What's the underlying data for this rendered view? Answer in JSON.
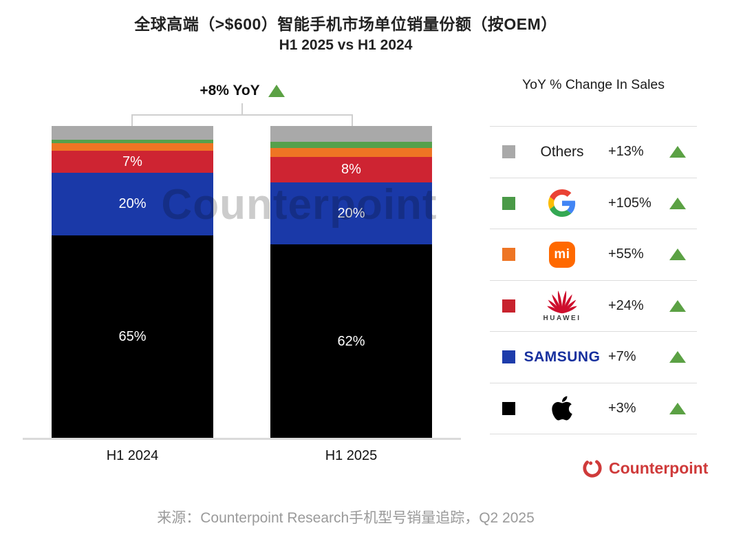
{
  "header": {
    "title": "全球高端（>$600）智能手机市场单位销量份额（按OEM）",
    "subtitle": "H1 2025 vs H1 2024"
  },
  "watermark": "Counterpoint",
  "chart_data": {
    "type": "bar",
    "stacked": true,
    "title": "全球高端（>$600）智能手机市场单位销量份额（按OEM）",
    "subtitle": "H1 2025 vs H1 2024",
    "annotation": "+8% YoY",
    "categories": [
      "H1 2024",
      "H1 2025"
    ],
    "unit": "%",
    "ylim": [
      0,
      100
    ],
    "series_order_note": "top-to-bottom stacking",
    "series": [
      {
        "name": "Others",
        "color": "#a9a9a9",
        "values": [
          4.5,
          5
        ],
        "labels": [
          "",
          ""
        ]
      },
      {
        "name": "Google",
        "color": "#55a04c",
        "values": [
          1,
          2
        ],
        "labels": [
          "",
          ""
        ]
      },
      {
        "name": "Xiaomi",
        "color": "#ee7524",
        "values": [
          2.5,
          3
        ],
        "labels": [
          "",
          ""
        ]
      },
      {
        "name": "Huawei",
        "color": "#ce2432",
        "values": [
          7,
          8
        ],
        "labels": [
          "7%",
          "8%"
        ]
      },
      {
        "name": "Samsung",
        "color": "#1a39a8",
        "values": [
          20,
          20
        ],
        "labels": [
          "20%",
          "20%"
        ]
      },
      {
        "name": "Apple",
        "color": "#000000",
        "values": [
          65,
          62
        ],
        "labels": [
          "65%",
          "62%"
        ]
      }
    ]
  },
  "legend": {
    "title": "YoY % Change In Sales",
    "rows": [
      {
        "name": "Others",
        "swatch": "#a9a9a9",
        "change": "+13%"
      },
      {
        "name": "Google",
        "swatch": "#4a9a47",
        "change": "+105%"
      },
      {
        "name": "Xiaomi",
        "swatch": "#ee7524",
        "change": "+55%",
        "logo_text": "mi"
      },
      {
        "name": "Huawei",
        "swatch": "#c8232e",
        "change": "+24%",
        "logo_caption": "HUAWEI"
      },
      {
        "name": "Samsung",
        "swatch": "#1d3cab",
        "change": "+7%",
        "wordmark": "SAMSUNG"
      },
      {
        "name": "Apple",
        "swatch": "#000000",
        "change": "+3%"
      }
    ]
  },
  "footer": {
    "source": "来源：Counterpoint Research手机型号销量追踪，Q2 2025",
    "brand": "Counterpoint"
  },
  "colors": {
    "up_triangle_green": "#5ba144",
    "axis_line": "#dadada",
    "bracket_line": "#cfcfcf",
    "brand_red": "#cf3a3a",
    "source_gray": "#9a9a9a"
  }
}
